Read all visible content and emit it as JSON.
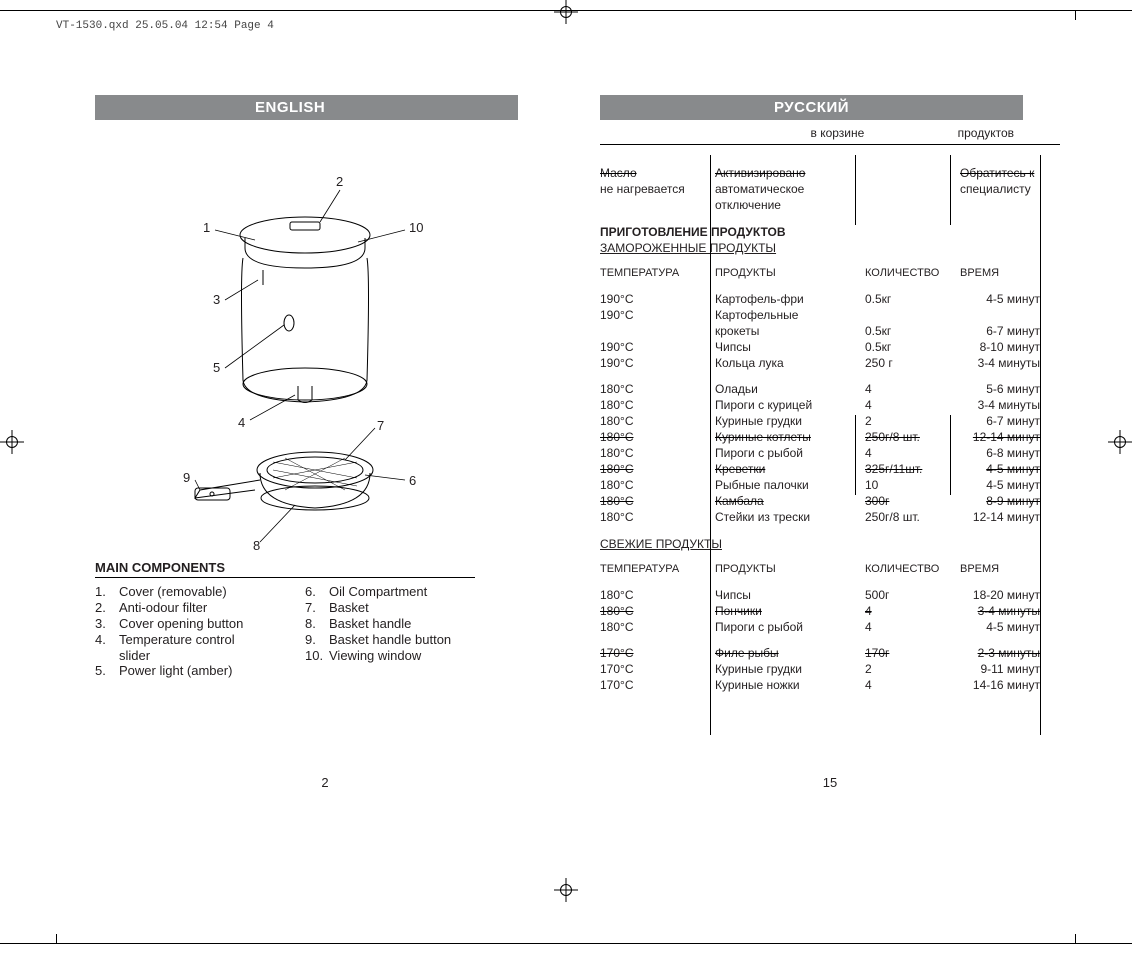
{
  "header": "VT-1530.qxd  25.05.04  12:54  Page 4",
  "left": {
    "lang": "ENGLISH",
    "pageNum": "2",
    "diagram": {
      "labels": [
        "1",
        "2",
        "3",
        "4",
        "5",
        "6",
        "7",
        "8",
        "9",
        "10"
      ]
    },
    "sectionTitle": "MAIN COMPONENTS",
    "componentsCol1": [
      {
        "n": "1.",
        "t": "Cover (removable)"
      },
      {
        "n": "2.",
        "t": "Anti-odour filter"
      },
      {
        "n": "3.",
        "t": "Cover opening button"
      },
      {
        "n": "4.",
        "t": "Temperature control"
      },
      {
        "n": "",
        "t": "slider",
        "cont": true
      },
      {
        "n": "5.",
        "t": "Power light (amber)"
      }
    ],
    "componentsCol2": [
      {
        "n": "6.",
        "t": "Oil Compartment"
      },
      {
        "n": "7.",
        "t": "Basket"
      },
      {
        "n": "8.",
        "t": "Basket handle"
      },
      {
        "n": "9.",
        "t": "Basket handle button"
      },
      {
        "n": "10.",
        "t": "Viewing window"
      }
    ]
  },
  "right": {
    "lang": "РУССКИЙ",
    "pageNum": "15",
    "smallRow": {
      "a": "в корзине",
      "b": "продуктов"
    },
    "oilRow1": {
      "a": "Масло",
      "b": "Активизировано",
      "c": "Обратитесь к"
    },
    "oilRow2": {
      "a": "не нагревается",
      "b": "автоматическое",
      "c": "специалисту"
    },
    "oilRow3": {
      "b": "отключение"
    },
    "sectionTitle": "ПРИГОТОВЛЕНИЕ ПРОДУКТОВ",
    "sub1": "ЗАМОРОЖЕННЫЕ ПРОДУКТЫ",
    "headers": {
      "c1": "ТЕМПЕРАТУРА",
      "c2": "ПРОДУКТЫ",
      "c3": "КОЛИЧЕСТВО",
      "c4": "ВРЕМЯ"
    },
    "frozen": [
      {
        "t": "190°C",
        "p": "Картофель-фри",
        "q": "0.5кг",
        "v": "4-5 минут"
      },
      {
        "t": "190°C",
        "p": "Картофельные",
        "q": "",
        "v": ""
      },
      {
        "t": "",
        "p": "крокеты",
        "q": "0.5кг",
        "v": "6-7 минут"
      },
      {
        "t": "190°C",
        "p": "Чипсы",
        "q": "0.5кг",
        "v": "8-10 минут"
      },
      {
        "t": "190°C",
        "p": "Кольца лука",
        "q": "250 г",
        "v": "3-4 минуты"
      },
      {
        "gap": true
      },
      {
        "t": "180°C",
        "p": "Оладьи",
        "q": "4",
        "v": "5-6 минут"
      },
      {
        "t": "180°C",
        "p": "Пироги с курицей",
        "q": "4",
        "v": "3-4 минуты"
      },
      {
        "t": "180°C",
        "p": "Куриные грудки",
        "q": "2",
        "v": "6-7 минут"
      },
      {
        "t": "180°C",
        "p": "Куриные котлеты",
        "q": "250г/8 шт.",
        "v": "12-14 минут",
        "strike": true
      },
      {
        "t": "180°C",
        "p": "Пироги с рыбой",
        "q": "4",
        "v": "6-8 минут"
      },
      {
        "t": "180°C",
        "p": "Креветки",
        "q": "325г/11шт.",
        "v": "4-5 минут",
        "strike": true
      },
      {
        "t": "180°C",
        "p": "Рыбные палочки",
        "q": "10",
        "v": "4-5 минут"
      },
      {
        "t": "180°C",
        "p": "Камбала",
        "q": "300г",
        "v": "8-9 минут",
        "strike": true
      },
      {
        "t": "180°C",
        "p": "Стейки из трески",
        "q": "250г/8 шт.",
        "v": "12-14 минут"
      }
    ],
    "sub2": "СВЕЖИЕ ПРОДУКТЫ",
    "fresh": [
      {
        "t": "180°C",
        "p": "Чипсы",
        "q": "500г",
        "v": "18-20 минут"
      },
      {
        "t": "180°C",
        "p": "Пончики",
        "q": "4",
        "v": "3-4 минуты",
        "strike": true
      },
      {
        "t": "180°C",
        "p": "Пироги с рыбой",
        "q": "4",
        "v": "4-5 минут"
      },
      {
        "gap": true
      },
      {
        "t": "170°C",
        "p": "Филе рыбы",
        "q": "170г",
        "v": "2-3 минуты",
        "strike": true
      },
      {
        "t": "170°C",
        "p": "Куриные грудки",
        "q": "2",
        "v": "9-11 минут"
      },
      {
        "t": "170°C",
        "p": "Куриные ножки",
        "q": "4",
        "v": "14-16 минут"
      }
    ]
  }
}
